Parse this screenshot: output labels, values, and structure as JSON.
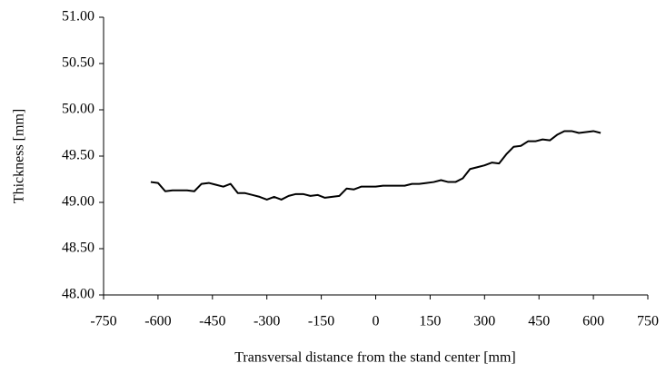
{
  "chart_data": {
    "type": "line",
    "xlabel": "Transversal distance from the stand center [mm]",
    "ylabel": "Thickness [mm]",
    "x": [
      -620,
      -600,
      -580,
      -560,
      -540,
      -520,
      -500,
      -480,
      -460,
      -440,
      -420,
      -400,
      -380,
      -360,
      -340,
      -320,
      -300,
      -280,
      -260,
      -240,
      -220,
      -200,
      -180,
      -160,
      -140,
      -120,
      -100,
      -80,
      -60,
      -40,
      -20,
      0,
      20,
      40,
      60,
      80,
      100,
      120,
      140,
      160,
      180,
      200,
      220,
      240,
      260,
      280,
      300,
      320,
      340,
      360,
      380,
      400,
      420,
      440,
      460,
      480,
      500,
      520,
      540,
      560,
      580,
      600,
      620
    ],
    "series": [
      {
        "name": "Thickness",
        "color": "#000000",
        "values": [
          49.22,
          49.21,
          49.12,
          49.13,
          49.13,
          49.13,
          49.12,
          49.2,
          49.21,
          49.19,
          49.17,
          49.2,
          49.1,
          49.1,
          49.08,
          49.06,
          49.03,
          49.06,
          49.03,
          49.07,
          49.09,
          49.09,
          49.07,
          49.08,
          49.05,
          49.06,
          49.07,
          49.15,
          49.14,
          49.17,
          49.17,
          49.17,
          49.18,
          49.18,
          49.18,
          49.18,
          49.2,
          49.2,
          49.21,
          49.22,
          49.24,
          49.22,
          49.22,
          49.26,
          49.36,
          49.38,
          49.4,
          49.43,
          49.42,
          49.52,
          49.6,
          49.61,
          49.66,
          49.66,
          49.68,
          49.67,
          49.73,
          49.77,
          49.77,
          49.75,
          49.76,
          49.77,
          49.75
        ]
      }
    ],
    "xlim": [
      -750,
      750
    ],
    "xticks": [
      -750,
      -600,
      -450,
      -300,
      -150,
      0,
      150,
      300,
      450,
      600,
      750
    ],
    "ylim": [
      48,
      51
    ],
    "yticks": [
      {
        "value": 48,
        "label": "48.00"
      },
      {
        "value": 48.5,
        "label": "48.50"
      },
      {
        "value": 49,
        "label": "49.00"
      },
      {
        "value": 49.5,
        "label": "49.50"
      },
      {
        "value": 50,
        "label": "50.00"
      },
      {
        "value": 50.5,
        "label": "50.50"
      },
      {
        "value": 51,
        "label": "51.00"
      }
    ],
    "grid": false
  }
}
